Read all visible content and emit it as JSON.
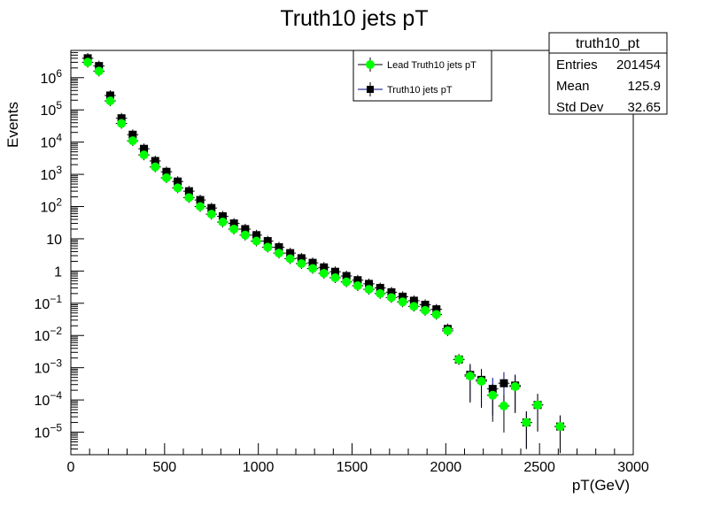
{
  "chart_data": {
    "type": "scatter",
    "title": "Truth10 jets pT",
    "xlabel": "pT(GeV)",
    "ylabel": "Events",
    "xlim": [
      0,
      3000
    ],
    "ylim": [
      2e-06,
      7000000.0
    ],
    "yscale": "log",
    "grid": false,
    "x_ticks": [
      "0",
      "500",
      "1000",
      "1500",
      "2000",
      "2500",
      "3000"
    ],
    "y_ticks": [
      {
        "mant": "10",
        "exp": "−5"
      },
      {
        "mant": "10",
        "exp": "−4"
      },
      {
        "mant": "10",
        "exp": "−3"
      },
      {
        "mant": "10",
        "exp": "−2"
      },
      {
        "mant": "10",
        "exp": "−1"
      },
      {
        "mant": "1",
        "exp": ""
      },
      {
        "mant": "10",
        "exp": ""
      },
      {
        "mant": "10",
        "exp": "2"
      },
      {
        "mant": "10",
        "exp": "3"
      },
      {
        "mant": "10",
        "exp": "4"
      },
      {
        "mant": "10",
        "exp": "5"
      },
      {
        "mant": "10",
        "exp": "6"
      }
    ],
    "legend_position": "top-right",
    "series": [
      {
        "name": "Truth10 jets pT",
        "color": "#000000",
        "marker": "square",
        "x": [
          90,
          150,
          210,
          270,
          330,
          390,
          450,
          510,
          570,
          630,
          690,
          750,
          810,
          870,
          930,
          990,
          1050,
          1110,
          1170,
          1230,
          1290,
          1350,
          1410,
          1470,
          1530,
          1590,
          1650,
          1710,
          1770,
          1830,
          1890,
          1950,
          2010,
          2070,
          2130,
          2190,
          2250,
          2310,
          2370,
          2430,
          2490,
          2610
        ],
        "y": [
          4000000,
          2300000,
          280000,
          55000,
          17000,
          6200,
          2600,
          1200,
          600,
          300,
          160,
          90,
          50,
          30,
          20,
          13,
          8.5,
          5.5,
          3.6,
          2.5,
          1.8,
          1.3,
          0.95,
          0.7,
          0.52,
          0.4,
          0.3,
          0.22,
          0.16,
          0.12,
          0.09,
          0.065,
          0.016,
          0.0018,
          0.0006,
          0.00042,
          0.00022,
          0.00033,
          0.00028,
          2e-05,
          7e-05,
          1.5e-05
        ]
      },
      {
        "name": "Lead Truth10 jets pT",
        "color": "#00ff00",
        "marker": "circle",
        "x": [
          90,
          150,
          210,
          270,
          330,
          390,
          450,
          510,
          570,
          630,
          690,
          750,
          810,
          870,
          930,
          990,
          1050,
          1110,
          1170,
          1230,
          1290,
          1350,
          1410,
          1470,
          1530,
          1590,
          1650,
          1710,
          1770,
          1830,
          1890,
          1950,
          2010,
          2070,
          2130,
          2190,
          2250,
          2310,
          2370,
          2430,
          2490,
          2610
        ],
        "y": [
          3000000,
          1600000,
          190000,
          38000,
          11000,
          4000,
          1700,
          780,
          380,
          190,
          100,
          58,
          33,
          20,
          13,
          8.5,
          5.5,
          3.6,
          2.4,
          1.7,
          1.2,
          0.85,
          0.62,
          0.46,
          0.35,
          0.27,
          0.2,
          0.15,
          0.11,
          0.08,
          0.06,
          0.045,
          0.014,
          0.0018,
          0.00055,
          0.00038,
          0.00014,
          6.5e-05,
          0.00026,
          2e-05,
          7e-05,
          1.5e-05
        ]
      }
    ],
    "stats": {
      "title": "truth10_pt",
      "rows": [
        {
          "label": "Entries",
          "value": "201454"
        },
        {
          "label": "Mean",
          "value": "125.9"
        },
        {
          "label": "Std Dev",
          "value": "32.65"
        }
      ]
    }
  }
}
